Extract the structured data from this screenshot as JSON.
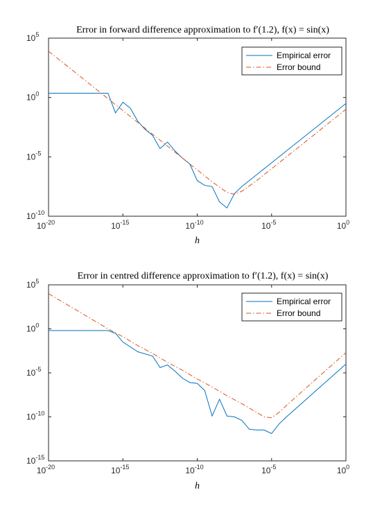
{
  "chart_data": [
    {
      "type": "line",
      "title": "Error in forward difference approximation to f′(1.2), f(x) = sin(x)",
      "xlabel": "h",
      "ylabel": "",
      "xscale": "log",
      "yscale": "log",
      "xlim_exp": [
        -20,
        0
      ],
      "ylim_exp": [
        -10,
        5
      ],
      "xticks_exp": [
        -20,
        -15,
        -10,
        -5,
        0
      ],
      "yticks_exp": [
        -10,
        -5,
        0,
        5
      ],
      "legend_position": "top-right",
      "grid": false,
      "series": [
        {
          "name": "Empirical error",
          "color": "#0072BD",
          "style": "solid",
          "points": [
            [
              -20,
              0.362
            ],
            [
              -16,
              0.362
            ],
            [
              -15.5,
              -1.3
            ],
            [
              -15,
              -0.4
            ],
            [
              -14.5,
              -0.9
            ],
            [
              -14,
              -2.0
            ],
            [
              -13.5,
              -2.7
            ],
            [
              -13,
              -3.2
            ],
            [
              -12.5,
              -4.3
            ],
            [
              -12,
              -3.75
            ],
            [
              -11.5,
              -4.5
            ],
            [
              -11,
              -5.1
            ],
            [
              -10.5,
              -5.6
            ],
            [
              -10,
              -7.0
            ],
            [
              -9.5,
              -7.4
            ],
            [
              -9,
              -7.5
            ],
            [
              -8.5,
              -8.8
            ],
            [
              -8,
              -9.3
            ],
            [
              -7.5,
              -8.1
            ],
            [
              -7,
              -7.5
            ],
            [
              -6,
              -6.5
            ],
            [
              -5,
              -5.5
            ],
            [
              -4,
              -4.5
            ],
            [
              -3,
              -3.5
            ],
            [
              -2,
              -2.5
            ],
            [
              -1,
              -1.5
            ],
            [
              0,
              -0.5
            ]
          ]
        },
        {
          "name": "Error bound",
          "color": "#D95319",
          "style": "dashdot",
          "points": [
            [
              -20,
              3.9
            ],
            [
              -19,
              2.9
            ],
            [
              -18,
              1.9
            ],
            [
              -17,
              0.9
            ],
            [
              -16,
              -0.1
            ],
            [
              -15,
              -1.1
            ],
            [
              -14,
              -2.1
            ],
            [
              -13,
              -3.1
            ],
            [
              -12,
              -4.1
            ],
            [
              -11,
              -5.1
            ],
            [
              -10,
              -6.1
            ],
            [
              -9,
              -7.1
            ],
            [
              -8,
              -8.0
            ],
            [
              -7.5,
              -8.15
            ],
            [
              -7,
              -7.9
            ],
            [
              -6,
              -7.0
            ],
            [
              -5,
              -6.0
            ],
            [
              -4,
              -5.0
            ],
            [
              -3,
              -4.0
            ],
            [
              -2,
              -3.0
            ],
            [
              -1,
              -2.0
            ],
            [
              0,
              -1.0
            ]
          ]
        }
      ]
    },
    {
      "type": "line",
      "title": "Error in centred difference approximation to f′(1.2), f(x) = sin(x)",
      "xlabel": "h",
      "ylabel": "",
      "xscale": "log",
      "yscale": "log",
      "xlim_exp": [
        -20,
        0
      ],
      "ylim_exp": [
        -15,
        5
      ],
      "xticks_exp": [
        -20,
        -15,
        -10,
        -5,
        0
      ],
      "yticks_exp": [
        -15,
        -10,
        -5,
        0,
        5
      ],
      "legend_position": "top-right",
      "grid": false,
      "series": [
        {
          "name": "Empirical error",
          "color": "#0072BD",
          "style": "solid",
          "points": [
            [
              -20,
              -0.2
            ],
            [
              -16,
              -0.2
            ],
            [
              -15.5,
              -0.5
            ],
            [
              -15,
              -1.5
            ],
            [
              -14,
              -2.6
            ],
            [
              -13,
              -3.1
            ],
            [
              -12.5,
              -4.4
            ],
            [
              -12,
              -4.1
            ],
            [
              -11.5,
              -4.8
            ],
            [
              -11,
              -5.6
            ],
            [
              -10.5,
              -6.1
            ],
            [
              -10,
              -6.2
            ],
            [
              -9.5,
              -7.0
            ],
            [
              -9,
              -9.9
            ],
            [
              -8.5,
              -8.0
            ],
            [
              -8,
              -9.9
            ],
            [
              -7.5,
              -10.0
            ],
            [
              -7,
              -10.4
            ],
            [
              -6.5,
              -11.4
            ],
            [
              -6,
              -11.5
            ],
            [
              -5.5,
              -11.5
            ],
            [
              -5,
              -11.9
            ],
            [
              -4.5,
              -10.8
            ],
            [
              -4,
              -10.0
            ],
            [
              -3,
              -8.5
            ],
            [
              -2,
              -7.0
            ],
            [
              -1,
              -5.5
            ],
            [
              0,
              -4.0
            ]
          ]
        },
        {
          "name": "Error bound",
          "color": "#D95319",
          "style": "dashdot",
          "points": [
            [
              -20,
              4.0
            ],
            [
              -18,
              2.0
            ],
            [
              -16,
              0.0
            ],
            [
              -15,
              -0.9
            ],
            [
              -14,
              -1.9
            ],
            [
              -13,
              -2.8
            ],
            [
              -12,
              -3.8
            ],
            [
              -11,
              -4.7
            ],
            [
              -10,
              -5.7
            ],
            [
              -9,
              -6.6
            ],
            [
              -8,
              -7.6
            ],
            [
              -7,
              -8.5
            ],
            [
              -6,
              -9.5
            ],
            [
              -5.5,
              -10.0
            ],
            [
              -5,
              -10.1
            ],
            [
              -4.5,
              -9.5
            ],
            [
              -4,
              -8.7
            ],
            [
              -3,
              -7.2
            ],
            [
              -2,
              -5.7
            ],
            [
              -1,
              -4.2
            ],
            [
              0,
              -2.7
            ]
          ]
        }
      ]
    }
  ]
}
